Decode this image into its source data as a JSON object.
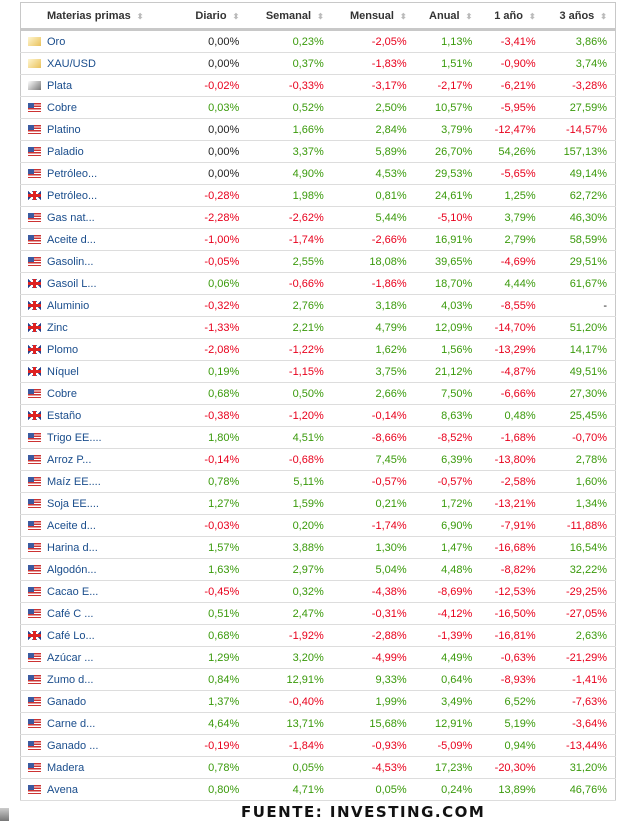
{
  "headers": {
    "name": "Materias primas",
    "daily": "Diario",
    "weekly": "Semanal",
    "monthly": "Mensual",
    "annual": "Anual",
    "one_year": "1 año",
    "three_years": "3 años"
  },
  "rows": [
    {
      "flag": "gold",
      "name": "Oro",
      "v": [
        "0,00%",
        "0,23%",
        "-2,05%",
        "1,13%",
        "-3,41%",
        "3,86%"
      ]
    },
    {
      "flag": "gold",
      "name": "XAU/USD",
      "v": [
        "0,00%",
        "0,37%",
        "-1,83%",
        "1,51%",
        "-0,90%",
        "3,74%"
      ]
    },
    {
      "flag": "silver",
      "name": "Plata",
      "v": [
        "-0,02%",
        "-0,33%",
        "-3,17%",
        "-2,17%",
        "-6,21%",
        "-3,28%"
      ]
    },
    {
      "flag": "us",
      "name": "Cobre",
      "v": [
        "0,03%",
        "0,52%",
        "2,50%",
        "10,57%",
        "-5,95%",
        "27,59%"
      ]
    },
    {
      "flag": "us",
      "name": "Platino",
      "v": [
        "0,00%",
        "1,66%",
        "2,84%",
        "3,79%",
        "-12,47%",
        "-14,57%"
      ]
    },
    {
      "flag": "us",
      "name": "Paladio",
      "v": [
        "0,00%",
        "3,37%",
        "5,89%",
        "26,70%",
        "54,26%",
        "157,13%"
      ]
    },
    {
      "flag": "us",
      "name": "Petróleo...",
      "v": [
        "0,00%",
        "4,90%",
        "4,53%",
        "29,53%",
        "-5,65%",
        "49,14%"
      ]
    },
    {
      "flag": "uk",
      "name": "Petróleo...",
      "v": [
        "-0,28%",
        "1,98%",
        "0,81%",
        "24,61%",
        "1,25%",
        "62,72%"
      ]
    },
    {
      "flag": "us",
      "name": "Gas nat...",
      "v": [
        "-2,28%",
        "-2,62%",
        "5,44%",
        "-5,10%",
        "3,79%",
        "46,30%"
      ]
    },
    {
      "flag": "us",
      "name": "Aceite d...",
      "v": [
        "-1,00%",
        "-1,74%",
        "-2,66%",
        "16,91%",
        "2,79%",
        "58,59%"
      ]
    },
    {
      "flag": "us",
      "name": "Gasolin...",
      "v": [
        "-0,05%",
        "2,55%",
        "18,08%",
        "39,65%",
        "-4,69%",
        "29,51%"
      ]
    },
    {
      "flag": "uk",
      "name": "Gasoil L...",
      "v": [
        "0,06%",
        "-0,66%",
        "-1,86%",
        "18,70%",
        "4,44%",
        "61,67%"
      ]
    },
    {
      "flag": "uk",
      "name": "Aluminio",
      "v": [
        "-0,32%",
        "2,76%",
        "3,18%",
        "4,03%",
        "-8,55%",
        "-"
      ]
    },
    {
      "flag": "uk",
      "name": "Zinc",
      "v": [
        "-1,33%",
        "2,21%",
        "4,79%",
        "12,09%",
        "-14,70%",
        "51,20%"
      ]
    },
    {
      "flag": "uk",
      "name": "Plomo",
      "v": [
        "-2,08%",
        "-1,22%",
        "1,62%",
        "1,56%",
        "-13,29%",
        "14,17%"
      ]
    },
    {
      "flag": "uk",
      "name": "Níquel",
      "v": [
        "0,19%",
        "-1,15%",
        "3,75%",
        "21,12%",
        "-4,87%",
        "49,51%"
      ]
    },
    {
      "flag": "us",
      "name": "Cobre",
      "v": [
        "0,68%",
        "0,50%",
        "2,66%",
        "7,50%",
        "-6,66%",
        "27,30%"
      ]
    },
    {
      "flag": "uk",
      "name": "Estaño",
      "v": [
        "-0,38%",
        "-1,20%",
        "-0,14%",
        "8,63%",
        "0,48%",
        "25,45%"
      ]
    },
    {
      "flag": "us",
      "name": "Trigo EE....",
      "v": [
        "1,80%",
        "4,51%",
        "-8,66%",
        "-8,52%",
        "-1,68%",
        "-0,70%"
      ]
    },
    {
      "flag": "us",
      "name": "Arroz P...",
      "v": [
        "-0,14%",
        "-0,68%",
        "7,45%",
        "6,39%",
        "-13,80%",
        "2,78%"
      ]
    },
    {
      "flag": "us",
      "name": "Maíz EE....",
      "v": [
        "0,78%",
        "5,11%",
        "-0,57%",
        "-0,57%",
        "-2,58%",
        "1,60%"
      ]
    },
    {
      "flag": "us",
      "name": "Soja EE....",
      "v": [
        "1,27%",
        "1,59%",
        "0,21%",
        "1,72%",
        "-13,21%",
        "1,34%"
      ]
    },
    {
      "flag": "us",
      "name": "Aceite d...",
      "v": [
        "-0,03%",
        "0,20%",
        "-1,74%",
        "6,90%",
        "-7,91%",
        "-11,88%"
      ]
    },
    {
      "flag": "us",
      "name": "Harina d...",
      "v": [
        "1,57%",
        "3,88%",
        "1,30%",
        "1,47%",
        "-16,68%",
        "16,54%"
      ]
    },
    {
      "flag": "us",
      "name": "Algodón...",
      "v": [
        "1,63%",
        "2,97%",
        "5,04%",
        "4,48%",
        "-8,82%",
        "32,22%"
      ]
    },
    {
      "flag": "us",
      "name": "Cacao E...",
      "v": [
        "-0,45%",
        "0,32%",
        "-4,38%",
        "-8,69%",
        "-12,53%",
        "-29,25%"
      ]
    },
    {
      "flag": "us",
      "name": "Café C ...",
      "v": [
        "0,51%",
        "2,47%",
        "-0,31%",
        "-4,12%",
        "-16,50%",
        "-27,05%"
      ]
    },
    {
      "flag": "uk",
      "name": "Café Lo...",
      "v": [
        "0,68%",
        "-1,92%",
        "-2,88%",
        "-1,39%",
        "-16,81%",
        "2,63%"
      ]
    },
    {
      "flag": "us",
      "name": "Azúcar ...",
      "v": [
        "1,29%",
        "3,20%",
        "-4,99%",
        "4,49%",
        "-0,63%",
        "-21,29%"
      ]
    },
    {
      "flag": "us",
      "name": "Zumo d...",
      "v": [
        "0,84%",
        "12,91%",
        "9,33%",
        "0,64%",
        "-8,93%",
        "-1,41%"
      ]
    },
    {
      "flag": "us",
      "name": "Ganado",
      "v": [
        "1,37%",
        "-0,40%",
        "1,99%",
        "3,49%",
        "6,52%",
        "-7,63%"
      ]
    },
    {
      "flag": "us",
      "name": "Carne d...",
      "v": [
        "4,64%",
        "13,71%",
        "15,68%",
        "12,91%",
        "5,19%",
        "-3,64%"
      ]
    },
    {
      "flag": "us",
      "name": "Ganado ...",
      "v": [
        "-0,19%",
        "-1,84%",
        "-0,93%",
        "-5,09%",
        "0,94%",
        "-13,44%"
      ]
    },
    {
      "flag": "us",
      "name": "Madera",
      "v": [
        "0,78%",
        "0,05%",
        "-4,53%",
        "17,23%",
        "-20,30%",
        "31,20%"
      ]
    },
    {
      "flag": "us",
      "name": "Avena",
      "v": [
        "0,80%",
        "4,71%",
        "0,05%",
        "0,24%",
        "13,89%",
        "46,76%"
      ]
    }
  ],
  "source": "FUENTE: INVESTING.COM"
}
